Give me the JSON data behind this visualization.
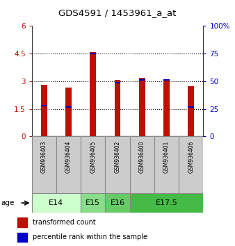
{
  "title": "GDS4591 / 1453961_a_at",
  "samples": [
    "GSM936403",
    "GSM936404",
    "GSM936405",
    "GSM936402",
    "GSM936400",
    "GSM936401",
    "GSM936406"
  ],
  "red_values": [
    2.8,
    2.65,
    4.58,
    3.05,
    3.18,
    3.12,
    2.72
  ],
  "blue_values": [
    1.68,
    1.6,
    4.5,
    2.93,
    3.07,
    3.08,
    1.6
  ],
  "red_color": "#bb1100",
  "blue_color": "#0000cc",
  "bar_width": 0.55,
  "ylim_left": [
    0,
    6
  ],
  "ylim_right": [
    0,
    100
  ],
  "yticks_left": [
    0,
    1.5,
    3,
    4.5,
    6
  ],
  "yticks_right": [
    0,
    25,
    50,
    75,
    100
  ],
  "age_groups": [
    {
      "label": "E14",
      "samples": [
        0,
        1
      ],
      "color": "#ccffcc",
      "edge_color": "#888888"
    },
    {
      "label": "E15",
      "samples": [
        2
      ],
      "color": "#88dd88",
      "edge_color": "#888888"
    },
    {
      "label": "E16",
      "samples": [
        3
      ],
      "color": "#66cc66",
      "edge_color": "#888888"
    },
    {
      "label": "E17.5",
      "samples": [
        4,
        5,
        6
      ],
      "color": "#44bb44",
      "edge_color": "#888888"
    }
  ],
  "sample_box_color": "#cccccc",
  "sample_box_edge": "#888888",
  "plot_bg_color": "#ffffff",
  "legend_red_label": "transformed count",
  "legend_blue_label": "percentile rank within the sample",
  "age_label": "age"
}
